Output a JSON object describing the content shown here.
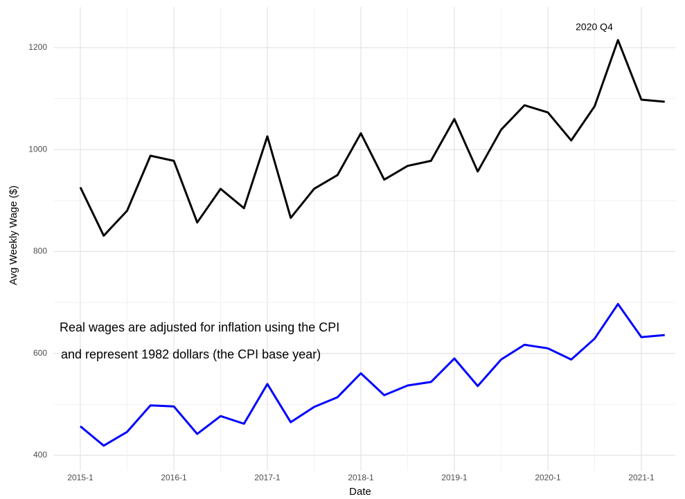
{
  "chart_data": {
    "type": "line",
    "x_label": "Date",
    "y_label": "Avg Weekly Wage ($)",
    "categories": [
      "2015-1",
      null,
      null,
      null,
      "2016-1",
      null,
      null,
      null,
      "2017-1",
      null,
      null,
      null,
      "2018-1",
      null,
      null,
      null,
      "2019-1",
      null,
      null,
      null,
      "2020-1",
      null,
      null,
      null,
      "2021-1",
      null
    ],
    "series": [
      {
        "color": "#000000",
        "values": [
          926,
          831,
          880,
          988,
          978,
          857,
          923,
          885,
          1026,
          866,
          923,
          950,
          1032,
          941,
          968,
          978,
          1060,
          957,
          1039,
          1087,
          1073,
          1018,
          1085,
          1215,
          1098,
          1094
        ]
      },
      {
        "color": "#0000ff",
        "values": [
          457,
          419,
          446,
          498,
          496,
          442,
          477,
          462,
          540,
          465,
          495,
          514,
          561,
          518,
          537,
          544,
          590,
          536,
          588,
          617,
          610,
          588,
          629,
          697,
          632,
          636
        ]
      }
    ],
    "ylim": [
      370,
      1280
    ],
    "yticks": [
      400,
      600,
      800,
      1000,
      1200
    ],
    "grid": true,
    "annotations": [
      "2020 Q4",
      "Real wages are adjusted for inflation using the CPI",
      "and represent 1982 dollars (the CPI base year)"
    ]
  }
}
